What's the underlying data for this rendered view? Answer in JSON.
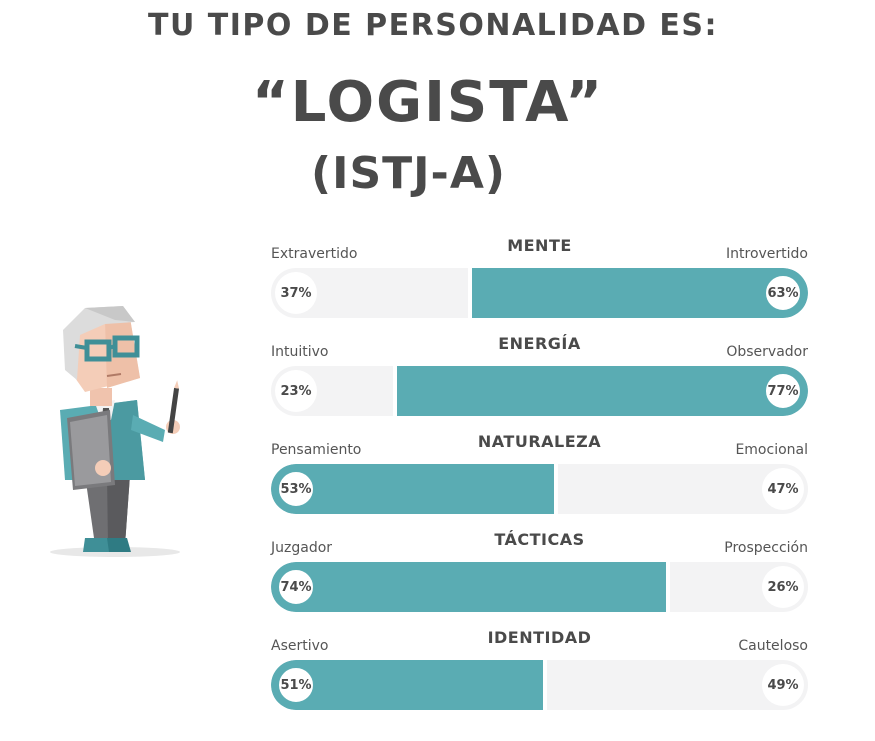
{
  "header": {
    "line1": "TU TIPO DE PERSONALIDAD ES:",
    "type_name": "“LOGISTA”",
    "type_code": "(ISTJ-A)"
  },
  "colors": {
    "accent": "#5aacb3",
    "track": "#f3f3f4",
    "text": "#4a4a4a"
  },
  "avatar": {
    "icon": "logistician-avatar-icon"
  },
  "scales": [
    {
      "title": "MENTE",
      "left_label": "Extravertido",
      "right_label": "Introvertido",
      "left_pct": "37%",
      "right_pct": "63%",
      "left_value": 37,
      "dominant": "right"
    },
    {
      "title": "ENERGÍA",
      "left_label": "Intuitivo",
      "right_label": "Observador",
      "left_pct": "23%",
      "right_pct": "77%",
      "left_value": 23,
      "dominant": "right"
    },
    {
      "title": "NATURALEZA",
      "left_label": "Pensamiento",
      "right_label": "Emocional",
      "left_pct": "53%",
      "right_pct": "47%",
      "left_value": 53,
      "dominant": "left"
    },
    {
      "title": "TÁCTICAS",
      "left_label": "Juzgador",
      "right_label": "Prospección",
      "left_pct": "74%",
      "right_pct": "26%",
      "left_value": 74,
      "dominant": "left"
    },
    {
      "title": "IDENTIDAD",
      "left_label": "Asertivo",
      "right_label": "Cauteloso",
      "left_pct": "51%",
      "right_pct": "49%",
      "left_value": 51,
      "dominant": "left"
    }
  ]
}
